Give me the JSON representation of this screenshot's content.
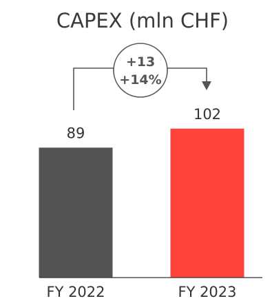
{
  "chart_data": {
    "type": "bar",
    "title": "CAPEX (mln CHF)",
    "categories": [
      "FY 2022",
      "FY 2023"
    ],
    "values": [
      89,
      102
    ],
    "value_labels": [
      "89",
      "102"
    ],
    "colors": [
      "#555355",
      "#ff423c"
    ],
    "change": {
      "absolute": "+13",
      "percent": "+14%"
    },
    "ylim": [
      0,
      120
    ],
    "grid": false,
    "legend": "none"
  }
}
